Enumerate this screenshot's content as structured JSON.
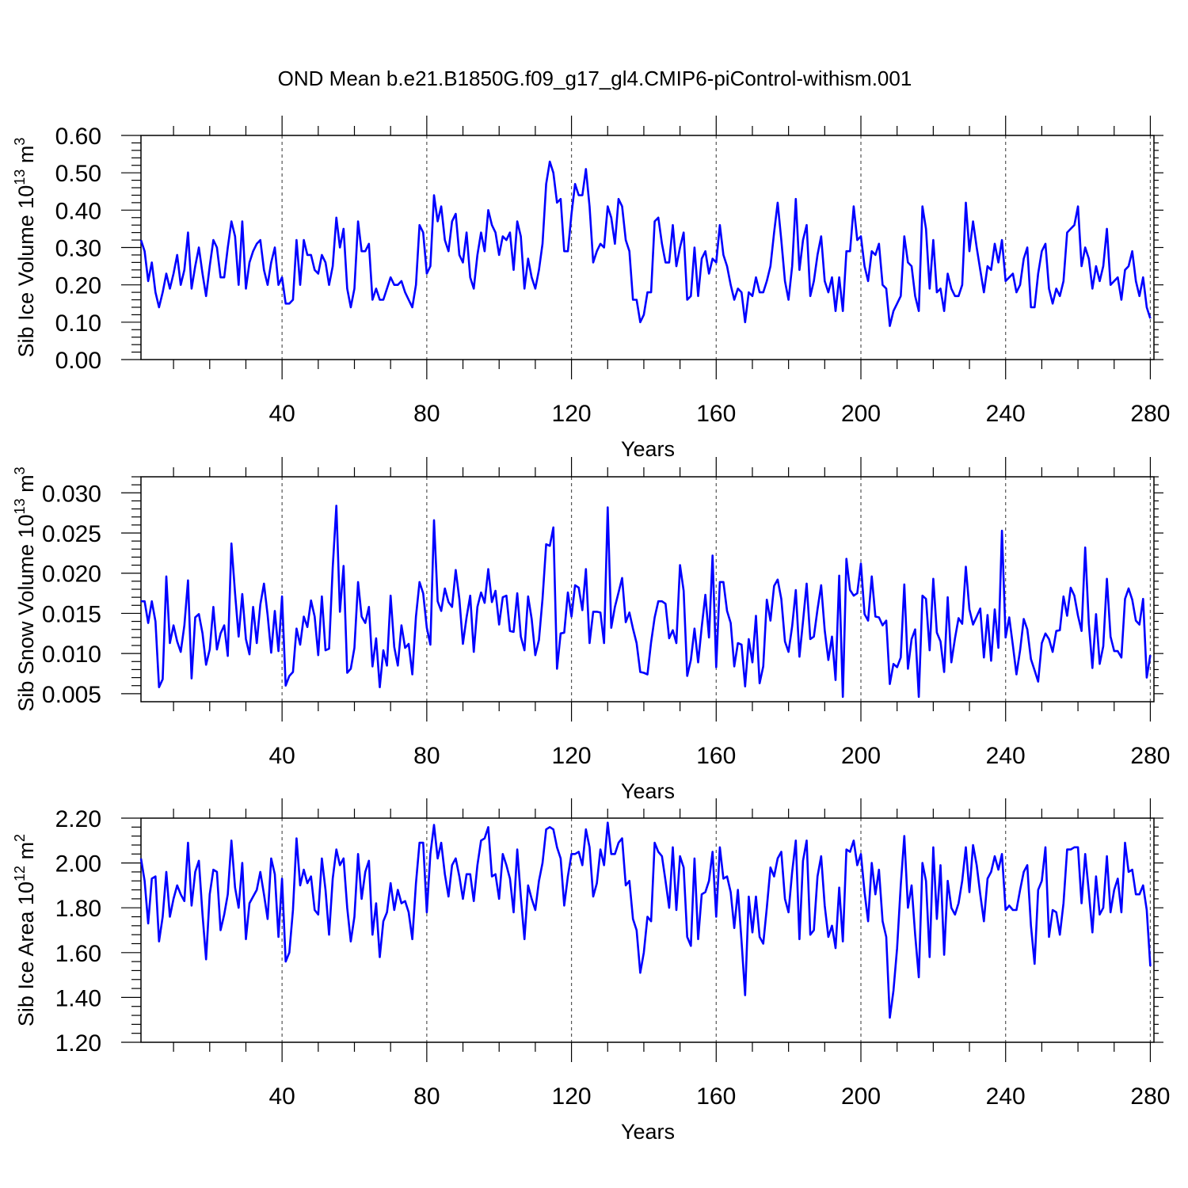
{
  "title": "OND Mean b.e21.B1850G.f09_g17_gl4.CMIP6-piControl-withism.001",
  "chart_data": [
    {
      "type": "line",
      "ylabel_main": "Sib Ice Volume 10",
      "ylabel_exp": "13",
      "ylabel_tail": " m",
      "ylabel_unit_exp": "3",
      "xlabel": "Years",
      "xlim": [
        1,
        281
      ],
      "ylim": [
        0.0,
        0.6
      ],
      "xticks": [
        40,
        80,
        120,
        160,
        200,
        240,
        280
      ],
      "yticks": [
        0.0,
        0.1,
        0.2,
        0.3,
        0.4,
        0.5,
        0.6
      ],
      "ytick_labels": [
        "0.00",
        "0.10",
        "0.20",
        "0.30",
        "0.40",
        "0.50",
        "0.60"
      ],
      "grid": "vertical dashed at major x ticks",
      "series": [
        {
          "color": "#0000ff",
          "values": [
            0.32,
            0.29,
            0.21,
            0.26,
            0.18,
            0.14,
            0.18,
            0.23,
            0.19,
            0.23,
            0.28,
            0.2,
            0.24,
            0.34,
            0.19,
            0.25,
            0.3,
            0.23,
            0.17,
            0.25,
            0.32,
            0.3,
            0.22,
            0.22,
            0.3,
            0.37,
            0.33,
            0.2,
            0.37,
            0.19,
            0.26,
            0.29,
            0.31,
            0.32,
            0.24,
            0.2,
            0.26,
            0.3,
            0.2,
            0.22,
            0.15,
            0.15,
            0.16,
            0.32,
            0.2,
            0.32,
            0.28,
            0.28,
            0.24,
            0.23,
            0.28,
            0.26,
            0.2,
            0.25,
            0.38,
            0.3,
            0.35,
            0.19,
            0.14,
            0.19,
            0.37,
            0.29,
            0.29,
            0.31,
            0.16,
            0.19,
            0.16,
            0.16,
            0.19,
            0.22,
            0.2,
            0.2,
            0.21,
            0.18,
            0.16,
            0.14,
            0.2,
            0.36,
            0.34,
            0.23,
            0.25,
            0.44,
            0.37,
            0.41,
            0.32,
            0.29,
            0.37,
            0.39,
            0.28,
            0.26,
            0.34,
            0.22,
            0.19,
            0.28,
            0.34,
            0.29,
            0.4,
            0.36,
            0.34,
            0.28,
            0.33,
            0.32,
            0.34,
            0.24,
            0.37,
            0.33,
            0.19,
            0.27,
            0.22,
            0.19,
            0.24,
            0.31,
            0.47,
            0.53,
            0.5,
            0.42,
            0.43,
            0.29,
            0.29,
            0.39,
            0.47,
            0.44,
            0.44,
            0.51,
            0.41,
            0.26,
            0.29,
            0.31,
            0.3,
            0.41,
            0.38,
            0.31,
            0.43,
            0.41,
            0.32,
            0.29,
            0.16,
            0.16,
            0.1,
            0.12,
            0.18,
            0.18,
            0.37,
            0.38,
            0.31,
            0.26,
            0.26,
            0.36,
            0.25,
            0.3,
            0.34,
            0.16,
            0.17,
            0.3,
            0.17,
            0.27,
            0.29,
            0.23,
            0.27,
            0.26,
            0.36,
            0.28,
            0.25,
            0.2,
            0.16,
            0.19,
            0.18,
            0.1,
            0.18,
            0.17,
            0.22,
            0.18,
            0.18,
            0.21,
            0.25,
            0.34,
            0.42,
            0.32,
            0.21,
            0.16,
            0.25,
            0.43,
            0.24,
            0.32,
            0.36,
            0.17,
            0.21,
            0.28,
            0.33,
            0.21,
            0.18,
            0.22,
            0.13,
            0.22,
            0.13,
            0.29,
            0.29,
            0.41,
            0.32,
            0.33,
            0.25,
            0.21,
            0.29,
            0.28,
            0.31,
            0.2,
            0.19,
            0.09,
            0.13,
            0.15,
            0.17,
            0.33,
            0.26,
            0.25,
            0.17,
            0.13,
            0.41,
            0.35,
            0.19,
            0.32,
            0.18,
            0.19,
            0.13,
            0.23,
            0.19,
            0.17,
            0.17,
            0.2,
            0.42,
            0.29,
            0.37,
            0.3,
            0.24,
            0.18,
            0.25,
            0.24,
            0.31,
            0.26,
            0.32,
            0.21,
            0.22,
            0.23,
            0.18,
            0.2,
            0.27,
            0.3,
            0.14,
            0.14,
            0.23,
            0.29,
            0.31,
            0.19,
            0.15,
            0.19,
            0.17,
            0.21,
            0.34,
            0.35,
            0.36,
            0.41,
            0.25,
            0.3,
            0.27,
            0.19,
            0.25,
            0.21,
            0.25,
            0.35,
            0.2,
            0.21,
            0.22,
            0.16,
            0.24,
            0.25,
            0.29,
            0.21,
            0.17,
            0.22,
            0.14,
            0.11
          ]
        }
      ]
    },
    {
      "type": "line",
      "ylabel_main": "Sib Snow Volume 10",
      "ylabel_exp": "13",
      "ylabel_tail": " m",
      "ylabel_unit_exp": "3",
      "xlabel": "Years",
      "xlim": [
        1,
        281
      ],
      "ylim": [
        0.004,
        0.032
      ],
      "xticks": [
        40,
        80,
        120,
        160,
        200,
        240,
        280
      ],
      "yticks": [
        0.005,
        0.01,
        0.015,
        0.02,
        0.025,
        0.03
      ],
      "ytick_labels": [
        "0.005",
        "0.010",
        "0.015",
        "0.020",
        "0.025",
        "0.030"
      ],
      "grid": "vertical dashed at major x ticks",
      "series": [
        {
          "color": "#0000ff",
          "values": [
            0.0165,
            0.0165,
            0.0138,
            0.0165,
            0.014,
            0.0058,
            0.0068,
            0.0196,
            0.0113,
            0.0135,
            0.0115,
            0.0102,
            0.0135,
            0.0191,
            0.0069,
            0.0145,
            0.0149,
            0.0125,
            0.0086,
            0.0105,
            0.0158,
            0.0105,
            0.0125,
            0.0135,
            0.0097,
            0.0237,
            0.0175,
            0.0121,
            0.0174,
            0.0118,
            0.0099,
            0.0158,
            0.0113,
            0.0161,
            0.0187,
            0.0148,
            0.0101,
            0.0153,
            0.0103,
            0.0171,
            0.006,
            0.0072,
            0.0077,
            0.0131,
            0.0111,
            0.0146,
            0.0133,
            0.0166,
            0.0146,
            0.0098,
            0.0171,
            0.0104,
            0.0106,
            0.0207,
            0.0284,
            0.0152,
            0.0209,
            0.0076,
            0.0081,
            0.0107,
            0.0189,
            0.0146,
            0.0138,
            0.0158,
            0.0084,
            0.0119,
            0.0058,
            0.0104,
            0.0085,
            0.0172,
            0.0108,
            0.0085,
            0.0135,
            0.0107,
            0.0112,
            0.0074,
            0.0146,
            0.0189,
            0.0175,
            0.0132,
            0.0111,
            0.0266,
            0.0165,
            0.0153,
            0.0181,
            0.0164,
            0.0158,
            0.0204,
            0.0168,
            0.0112,
            0.0145,
            0.0172,
            0.0102,
            0.0158,
            0.0176,
            0.0163,
            0.0205,
            0.0164,
            0.0178,
            0.0136,
            0.017,
            0.0172,
            0.0128,
            0.0127,
            0.0175,
            0.0121,
            0.0104,
            0.0171,
            0.0143,
            0.0098,
            0.0117,
            0.0168,
            0.0236,
            0.0234,
            0.0257,
            0.0081,
            0.0125,
            0.0126,
            0.0176,
            0.0146,
            0.0185,
            0.0182,
            0.0154,
            0.0205,
            0.0113,
            0.0152,
            0.0152,
            0.0151,
            0.0113,
            0.0282,
            0.0132,
            0.0158,
            0.0176,
            0.0194,
            0.0139,
            0.0151,
            0.0131,
            0.0113,
            0.0077,
            0.0076,
            0.0074,
            0.0114,
            0.0145,
            0.0165,
            0.0165,
            0.0162,
            0.0119,
            0.0129,
            0.0113,
            0.021,
            0.0178,
            0.0072,
            0.0092,
            0.0131,
            0.0089,
            0.0133,
            0.0173,
            0.012,
            0.0222,
            0.0083,
            0.0189,
            0.0189,
            0.0153,
            0.0138,
            0.0084,
            0.0113,
            0.0111,
            0.0059,
            0.0118,
            0.0089,
            0.0147,
            0.0063,
            0.0084,
            0.0167,
            0.0141,
            0.0184,
            0.0192,
            0.0168,
            0.0115,
            0.0102,
            0.0134,
            0.0179,
            0.0096,
            0.014,
            0.0187,
            0.0118,
            0.0121,
            0.0155,
            0.0185,
            0.0129,
            0.0092,
            0.0121,
            0.0067,
            0.0197,
            0.0046,
            0.0218,
            0.0179,
            0.0172,
            0.0175,
            0.0212,
            0.0149,
            0.0141,
            0.0196,
            0.0146,
            0.0145,
            0.0135,
            0.0141,
            0.0062,
            0.0087,
            0.0083,
            0.0095,
            0.0186,
            0.0081,
            0.0118,
            0.013,
            0.0046,
            0.0172,
            0.0168,
            0.0104,
            0.0193,
            0.0126,
            0.0115,
            0.0077,
            0.017,
            0.0089,
            0.0119,
            0.0144,
            0.0137,
            0.0208,
            0.0155,
            0.0136,
            0.0146,
            0.0156,
            0.0095,
            0.0148,
            0.0091,
            0.0155,
            0.0107,
            0.0253,
            0.012,
            0.0145,
            0.011,
            0.0074,
            0.0104,
            0.0143,
            0.013,
            0.0093,
            0.0079,
            0.0065,
            0.0113,
            0.0125,
            0.0118,
            0.0102,
            0.0128,
            0.0129,
            0.0171,
            0.0147,
            0.0182,
            0.0172,
            0.0147,
            0.0128,
            0.0232,
            0.0137,
            0.0082,
            0.0149,
            0.0087,
            0.0109,
            0.0193,
            0.0121,
            0.0103,
            0.0103,
            0.0095,
            0.0168,
            0.0181,
            0.0167,
            0.0141,
            0.0136,
            0.0168,
            0.007,
            0.0098
          ]
        }
      ]
    },
    {
      "type": "line",
      "ylabel_main": "Sib Ice Area 10",
      "ylabel_exp": "12",
      "ylabel_tail": " m",
      "ylabel_unit_exp": "2",
      "xlabel": "Years",
      "xlim": [
        1,
        281
      ],
      "ylim": [
        1.2,
        2.2
      ],
      "xticks": [
        40,
        80,
        120,
        160,
        200,
        240,
        280
      ],
      "yticks": [
        1.2,
        1.4,
        1.6,
        1.8,
        2.0,
        2.2
      ],
      "ytick_labels": [
        "1.20",
        "1.40",
        "1.60",
        "1.80",
        "2.00",
        "2.20"
      ],
      "grid": "vertical dashed at major x ticks",
      "series": [
        {
          "color": "#0000ff",
          "values": [
            2.02,
            1.92,
            1.73,
            1.93,
            1.94,
            1.65,
            1.76,
            1.96,
            1.76,
            1.84,
            1.9,
            1.86,
            1.83,
            2.09,
            1.81,
            1.96,
            2.01,
            1.77,
            1.57,
            1.86,
            1.97,
            1.96,
            1.7,
            1.77,
            1.86,
            2.1,
            1.89,
            1.8,
            2.0,
            1.66,
            1.82,
            1.85,
            1.88,
            1.96,
            1.86,
            1.75,
            2.02,
            1.95,
            1.67,
            1.93,
            1.56,
            1.6,
            1.79,
            2.11,
            1.9,
            1.97,
            1.91,
            1.94,
            1.79,
            1.77,
            2.02,
            1.88,
            1.68,
            1.93,
            2.06,
            1.99,
            2.02,
            1.8,
            1.65,
            1.76,
            2.04,
            1.84,
            1.96,
            2.01,
            1.68,
            1.82,
            1.58,
            1.74,
            1.78,
            1.91,
            1.79,
            1.88,
            1.82,
            1.83,
            1.78,
            1.66,
            1.91,
            2.09,
            2.09,
            1.78,
            2.04,
            2.17,
            2.02,
            2.09,
            1.95,
            1.85,
            1.99,
            2.02,
            1.94,
            1.84,
            1.95,
            1.95,
            1.83,
            1.99,
            2.1,
            2.11,
            2.16,
            1.94,
            1.95,
            1.84,
            2.04,
            1.99,
            1.93,
            1.78,
            2.06,
            1.85,
            1.66,
            1.9,
            1.84,
            1.79,
            1.92,
            2.0,
            2.15,
            2.16,
            2.15,
            2.07,
            2.02,
            1.81,
            1.94,
            2.04,
            2.04,
            2.05,
            1.99,
            2.15,
            2.07,
            1.85,
            1.91,
            2.06,
            1.99,
            2.18,
            2.04,
            2.04,
            2.09,
            2.11,
            1.9,
            1.92,
            1.75,
            1.7,
            1.51,
            1.6,
            1.76,
            1.74,
            2.09,
            2.05,
            2.03,
            1.92,
            1.8,
            2.07,
            1.79,
            2.03,
            1.98,
            1.67,
            1.63,
            2.02,
            1.66,
            1.86,
            1.87,
            1.92,
            2.05,
            1.76,
            2.07,
            1.93,
            1.94,
            1.87,
            1.71,
            1.88,
            1.65,
            1.41,
            1.85,
            1.69,
            1.85,
            1.67,
            1.64,
            1.8,
            1.98,
            1.94,
            2.02,
            2.05,
            1.84,
            1.78,
            1.96,
            2.1,
            1.66,
            2.01,
            2.1,
            1.68,
            1.7,
            1.94,
            2.03,
            1.81,
            1.67,
            1.72,
            1.62,
            1.89,
            1.65,
            2.06,
            2.05,
            2.1,
            1.99,
            2.04,
            1.87,
            1.74,
            2.0,
            1.86,
            1.97,
            1.74,
            1.67,
            1.31,
            1.43,
            1.62,
            1.9,
            2.12,
            1.8,
            1.9,
            1.68,
            1.49,
            2.0,
            1.92,
            1.58,
            2.07,
            1.75,
            1.99,
            1.59,
            1.92,
            1.8,
            1.77,
            1.82,
            1.92,
            2.07,
            1.87,
            2.08,
            1.99,
            1.86,
            1.74,
            1.93,
            1.96,
            2.03,
            1.97,
            2.04,
            1.79,
            1.81,
            1.79,
            1.79,
            1.88,
            1.96,
            1.99,
            1.72,
            1.55,
            1.88,
            1.92,
            2.07,
            1.67,
            1.79,
            1.78,
            1.68,
            1.82,
            2.06,
            2.06,
            2.07,
            2.07,
            1.82,
            2.04,
            1.87,
            1.69,
            1.94,
            1.77,
            1.8,
            2.03,
            1.78,
            1.88,
            1.93,
            1.78,
            2.09,
            1.96,
            1.97,
            1.86,
            1.86,
            1.9,
            1.79,
            1.54
          ]
        }
      ]
    }
  ]
}
